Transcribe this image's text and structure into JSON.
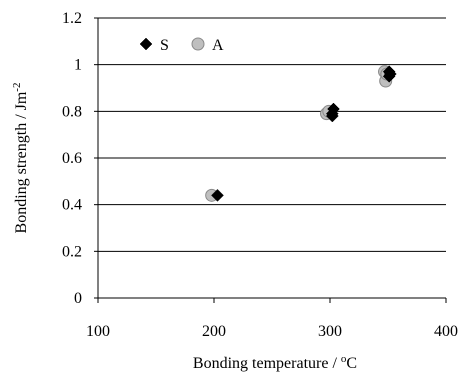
{
  "chart_data": {
    "type": "scatter",
    "xlabel_main": "Bonding temperature / ",
    "xlabel_sup": "o",
    "xlabel_end": "C",
    "ylabel_main": "Bonding strength / Jm",
    "ylabel_sup": "-2",
    "xlim": [
      100,
      400
    ],
    "ylim": [
      0,
      1.2
    ],
    "xticks": [
      100,
      200,
      300,
      400
    ],
    "yticks": [
      0,
      0.2,
      0.4,
      0.6,
      0.8,
      1.0,
      1.2
    ],
    "xtick_labels": [
      "100",
      "200",
      "300",
      "400"
    ],
    "ytick_labels": [
      "0",
      "0.2",
      "0.4",
      "0.6",
      "0.8",
      "1",
      "1.2"
    ],
    "grid": "horizontal",
    "legend_position": "top-left",
    "series": [
      {
        "name": "S",
        "marker": "diamond",
        "color": "#000000",
        "points": [
          [
            203,
            0.44
          ],
          [
            302,
            0.79
          ],
          [
            303,
            0.81
          ],
          [
            302,
            0.78
          ],
          [
            351,
            0.97
          ],
          [
            352,
            0.96
          ],
          [
            351,
            0.95
          ]
        ]
      },
      {
        "name": "A",
        "marker": "circle",
        "color": "#bfbfbf",
        "points": [
          [
            198,
            0.44
          ],
          [
            297,
            0.79
          ],
          [
            299,
            0.8
          ],
          [
            347,
            0.97
          ],
          [
            348,
            0.93
          ],
          [
            349,
            0.96
          ]
        ]
      }
    ]
  }
}
